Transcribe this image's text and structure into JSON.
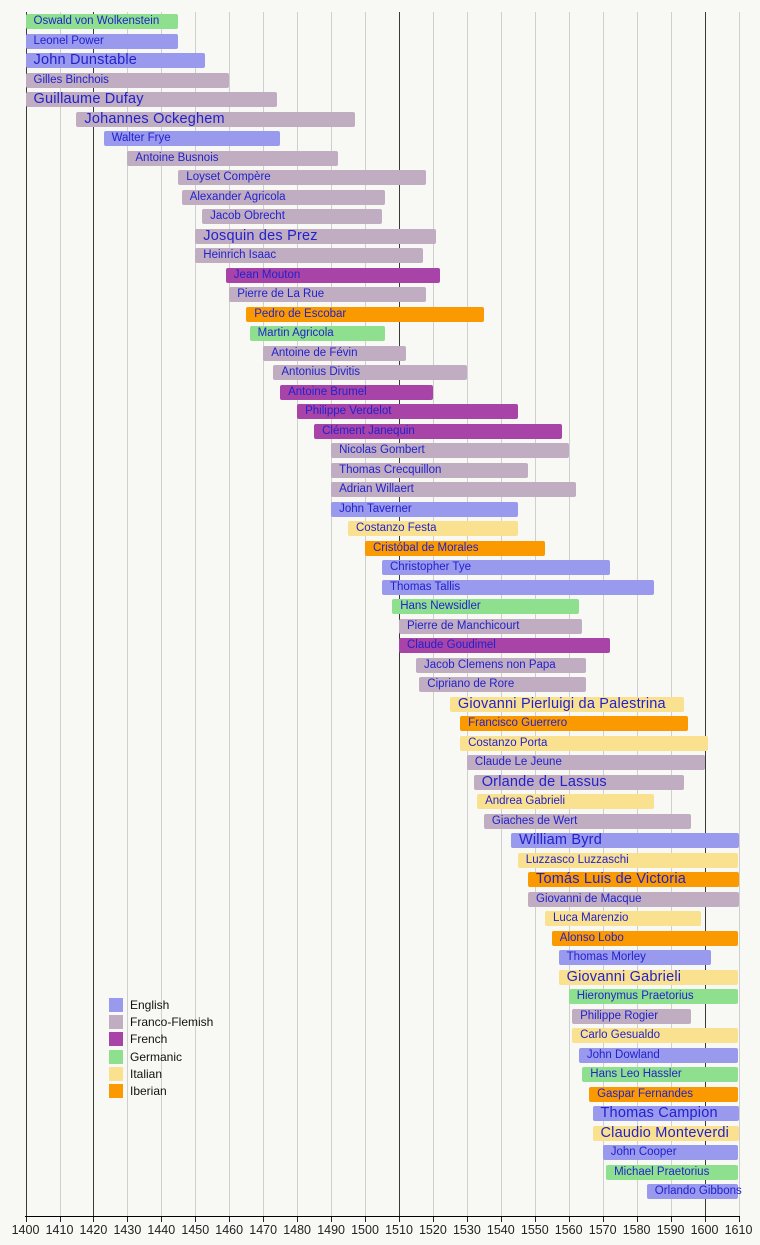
{
  "chart_data": {
    "type": "bar",
    "variant": "horizontal-timeline-gantt",
    "title": "",
    "x_axis": {
      "min": 1400,
      "max": 1610,
      "tick_interval": 10,
      "tick_labels": [
        "1400",
        "1410",
        "1420",
        "1430",
        "1440",
        "1450",
        "1460",
        "1470",
        "1480",
        "1490",
        "1500",
        "1510",
        "1520",
        "1530",
        "1540",
        "1550",
        "1560",
        "1570",
        "1580",
        "1590",
        "1600",
        "1610"
      ]
    },
    "major_gridline_years": [
      1400,
      1420,
      1510,
      1600
    ],
    "grid": "on",
    "legend": {
      "position": "bottom-left",
      "items": [
        {
          "label": "English",
          "key": "english",
          "color": "#9999EE"
        },
        {
          "label": "Franco-Flemish",
          "key": "franco_flemish",
          "color": "#C0ADC1"
        },
        {
          "label": "French",
          "key": "french",
          "color": "#A843A8"
        },
        {
          "label": "Germanic",
          "key": "germanic",
          "color": "#8EE08E"
        },
        {
          "label": "Italian",
          "key": "italian",
          "color": "#FAE18F"
        },
        {
          "label": "Iberian",
          "key": "iberian",
          "color": "#FB9900"
        }
      ]
    },
    "group_colors": {
      "english": "#9999EE",
      "franco_flemish": "#C0ADC1",
      "french": "#A843A8",
      "germanic": "#8EE08E",
      "italian": "#FAE18F",
      "iberian": "#FB9900"
    },
    "label_color": "#2222CC",
    "composers": [
      {
        "name": "Oswald von Wolkenstein",
        "group": "germanic",
        "start": 1400,
        "end": 1445,
        "emphasis": false
      },
      {
        "name": "Leonel Power",
        "group": "english",
        "start": 1400,
        "end": 1445,
        "emphasis": false
      },
      {
        "name": "John Dunstable",
        "group": "english",
        "start": 1400,
        "end": 1453,
        "emphasis": true
      },
      {
        "name": "Gilles Binchois",
        "group": "franco_flemish",
        "start": 1400,
        "end": 1460,
        "emphasis": false
      },
      {
        "name": "Guillaume Dufay",
        "group": "franco_flemish",
        "start": 1400,
        "end": 1474,
        "emphasis": true
      },
      {
        "name": "Johannes Ockeghem",
        "group": "franco_flemish",
        "start": 1415,
        "end": 1497,
        "emphasis": true
      },
      {
        "name": "Walter Frye",
        "group": "english",
        "start": 1423,
        "end": 1475,
        "emphasis": false
      },
      {
        "name": "Antoine Busnois",
        "group": "franco_flemish",
        "start": 1430,
        "end": 1492,
        "emphasis": false
      },
      {
        "name": "Loyset Compère",
        "group": "franco_flemish",
        "start": 1445,
        "end": 1518,
        "emphasis": false
      },
      {
        "name": "Alexander Agricola",
        "group": "franco_flemish",
        "start": 1446,
        "end": 1506,
        "emphasis": false
      },
      {
        "name": "Jacob Obrecht",
        "group": "franco_flemish",
        "start": 1452,
        "end": 1505,
        "emphasis": false
      },
      {
        "name": "Josquin des Prez",
        "group": "franco_flemish",
        "start": 1450,
        "end": 1521,
        "emphasis": true
      },
      {
        "name": "Heinrich Isaac",
        "group": "franco_flemish",
        "start": 1450,
        "end": 1517,
        "emphasis": false
      },
      {
        "name": "Jean Mouton",
        "group": "french",
        "start": 1459,
        "end": 1522,
        "emphasis": false
      },
      {
        "name": "Pierre de La Rue",
        "group": "franco_flemish",
        "start": 1460,
        "end": 1518,
        "emphasis": false
      },
      {
        "name": "Pedro de Escobar",
        "group": "iberian",
        "start": 1465,
        "end": 1535,
        "emphasis": false
      },
      {
        "name": "Martin Agricola",
        "group": "germanic",
        "start": 1466,
        "end": 1506,
        "emphasis": false
      },
      {
        "name": "Antoine de Févin",
        "group": "franco_flemish",
        "start": 1470,
        "end": 1512,
        "emphasis": false
      },
      {
        "name": "Antonius Divitis",
        "group": "franco_flemish",
        "start": 1473,
        "end": 1530,
        "emphasis": false
      },
      {
        "name": "Antoine Brumel",
        "group": "french",
        "start": 1475,
        "end": 1520,
        "emphasis": false
      },
      {
        "name": "Philippe Verdelot",
        "group": "french",
        "start": 1480,
        "end": 1545,
        "emphasis": false
      },
      {
        "name": "Clément Janequin",
        "group": "french",
        "start": 1485,
        "end": 1558,
        "emphasis": false
      },
      {
        "name": "Nicolas Gombert",
        "group": "franco_flemish",
        "start": 1490,
        "end": 1560,
        "emphasis": false
      },
      {
        "name": "Thomas Crecquillon",
        "group": "franco_flemish",
        "start": 1490,
        "end": 1548,
        "emphasis": false
      },
      {
        "name": "Adrian Willaert",
        "group": "franco_flemish",
        "start": 1490,
        "end": 1562,
        "emphasis": false
      },
      {
        "name": "John Taverner",
        "group": "english",
        "start": 1490,
        "end": 1545,
        "emphasis": false
      },
      {
        "name": "Costanzo Festa",
        "group": "italian",
        "start": 1495,
        "end": 1545,
        "emphasis": false
      },
      {
        "name": "Cristóbal de Morales",
        "group": "iberian",
        "start": 1500,
        "end": 1553,
        "emphasis": false
      },
      {
        "name": "Christopher Tye",
        "group": "english",
        "start": 1505,
        "end": 1572,
        "emphasis": false
      },
      {
        "name": "Thomas Tallis",
        "group": "english",
        "start": 1505,
        "end": 1585,
        "emphasis": false
      },
      {
        "name": "Hans Newsidler",
        "group": "germanic",
        "start": 1508,
        "end": 1563,
        "emphasis": false
      },
      {
        "name": "Pierre de Manchicourt",
        "group": "franco_flemish",
        "start": 1510,
        "end": 1564,
        "emphasis": false
      },
      {
        "name": "Claude Goudimel",
        "group": "french",
        "start": 1510,
        "end": 1572,
        "emphasis": false
      },
      {
        "name": "Jacob Clemens non Papa",
        "group": "franco_flemish",
        "start": 1515,
        "end": 1565,
        "emphasis": false
      },
      {
        "name": "Cipriano de Rore",
        "group": "franco_flemish",
        "start": 1516,
        "end": 1565,
        "emphasis": false
      },
      {
        "name": "Giovanni Pierluigi da Palestrina",
        "group": "italian",
        "start": 1525,
        "end": 1594,
        "emphasis": true
      },
      {
        "name": "Francisco Guerrero",
        "group": "iberian",
        "start": 1528,
        "end": 1595,
        "emphasis": false
      },
      {
        "name": "Costanzo Porta",
        "group": "italian",
        "start": 1528,
        "end": 1601,
        "emphasis": false
      },
      {
        "name": "Claude Le Jeune",
        "group": "franco_flemish",
        "start": 1530,
        "end": 1600,
        "emphasis": false
      },
      {
        "name": "Orlande de Lassus",
        "group": "franco_flemish",
        "start": 1532,
        "end": 1594,
        "emphasis": true
      },
      {
        "name": "Andrea Gabrieli",
        "group": "italian",
        "start": 1533,
        "end": 1585,
        "emphasis": false
      },
      {
        "name": "Giaches de Wert",
        "group": "franco_flemish",
        "start": 1535,
        "end": 1596,
        "emphasis": false
      },
      {
        "name": "William Byrd",
        "group": "english",
        "start": 1543,
        "end": 1610,
        "emphasis": true
      },
      {
        "name": "Luzzasco Luzzaschi",
        "group": "italian",
        "start": 1545,
        "end": 1610,
        "emphasis": false
      },
      {
        "name": "Tomás Luis de Victoria",
        "group": "iberian",
        "start": 1548,
        "end": 1610,
        "emphasis": true
      },
      {
        "name": "Giovanni de Macque",
        "group": "franco_flemish",
        "start": 1548,
        "end": 1610,
        "emphasis": false
      },
      {
        "name": "Luca Marenzio",
        "group": "italian",
        "start": 1553,
        "end": 1599,
        "emphasis": false
      },
      {
        "name": "Alonso Lobo",
        "group": "iberian",
        "start": 1555,
        "end": 1610,
        "emphasis": false
      },
      {
        "name": "Thomas Morley",
        "group": "english",
        "start": 1557,
        "end": 1602,
        "emphasis": false
      },
      {
        "name": "Giovanni Gabrieli",
        "group": "italian",
        "start": 1557,
        "end": 1610,
        "emphasis": true
      },
      {
        "name": "Hieronymus Praetorius",
        "group": "germanic",
        "start": 1560,
        "end": 1610,
        "emphasis": false
      },
      {
        "name": "Philippe Rogier",
        "group": "franco_flemish",
        "start": 1561,
        "end": 1596,
        "emphasis": false
      },
      {
        "name": "Carlo Gesualdo",
        "group": "italian",
        "start": 1561,
        "end": 1610,
        "emphasis": false
      },
      {
        "name": "John Dowland",
        "group": "english",
        "start": 1563,
        "end": 1610,
        "emphasis": false
      },
      {
        "name": "Hans Leo Hassler",
        "group": "germanic",
        "start": 1564,
        "end": 1610,
        "emphasis": false
      },
      {
        "name": "Gaspar Fernandes",
        "group": "iberian",
        "start": 1566,
        "end": 1610,
        "emphasis": false
      },
      {
        "name": "Thomas Campion",
        "group": "english",
        "start": 1567,
        "end": 1610,
        "emphasis": true
      },
      {
        "name": "Claudio Monteverdi",
        "group": "italian",
        "start": 1567,
        "end": 1610,
        "emphasis": true
      },
      {
        "name": "John Cooper",
        "group": "english",
        "start": 1570,
        "end": 1610,
        "emphasis": false
      },
      {
        "name": "Michael Praetorius",
        "group": "germanic",
        "start": 1571,
        "end": 1610,
        "emphasis": false
      },
      {
        "name": "Orlando Gibbons",
        "group": "english",
        "start": 1583,
        "end": 1610,
        "emphasis": false
      }
    ]
  }
}
